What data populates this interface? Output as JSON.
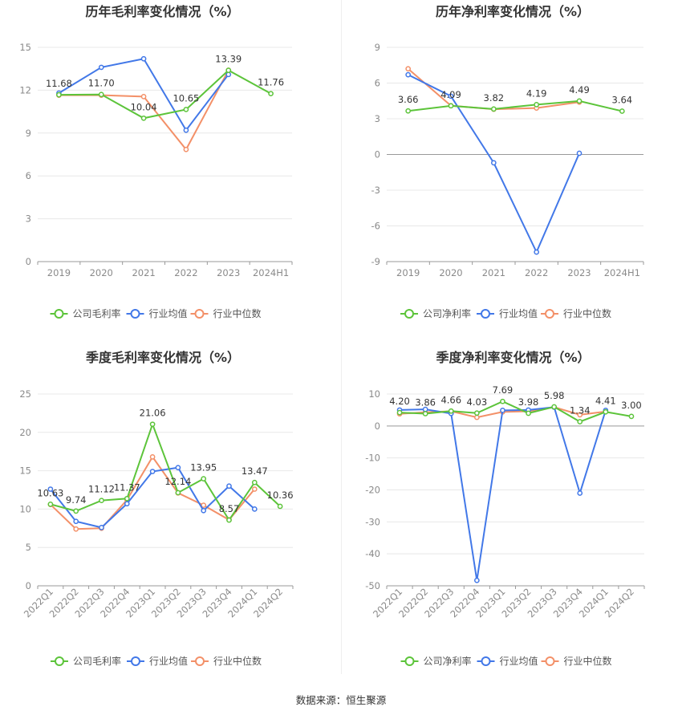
{
  "colors": {
    "company": "#5cc43a",
    "industry_avg": "#4278e8",
    "industry_median": "#f39068",
    "grid": "#e8e8e8",
    "axis": "#999999"
  },
  "source": "数据来源：恒生聚源",
  "chart_data": [
    {
      "type": "line",
      "title": "历年毛利率变化情况（%）",
      "categories": [
        "2019",
        "2020",
        "2021",
        "2022",
        "2023",
        "2024H1"
      ],
      "ylim": [
        0,
        15
      ],
      "yticks": [
        0,
        3,
        6,
        9,
        12,
        15
      ],
      "ytick_labels": [
        "0",
        "3",
        "6",
        "9",
        "12",
        "15"
      ],
      "grid": true,
      "legend_position": "bottom",
      "series": [
        {
          "name": "公司毛利率",
          "values": [
            11.68,
            11.7,
            10.04,
            10.65,
            13.39,
            11.76
          ],
          "labels": [
            "11.68",
            "11.70",
            "10.04",
            "10.65",
            "13.39",
            "11.76"
          ]
        },
        {
          "name": "行业均值",
          "values": [
            11.8,
            13.6,
            14.2,
            9.2,
            13.1,
            null
          ]
        },
        {
          "name": "行业中位数",
          "values": [
            11.65,
            11.65,
            11.55,
            7.85,
            13.4,
            null
          ]
        }
      ]
    },
    {
      "type": "line",
      "title": "历年净利率变化情况（%）",
      "categories": [
        "2019",
        "2020",
        "2021",
        "2022",
        "2023",
        "2024H1"
      ],
      "ylim": [
        -9,
        9
      ],
      "yticks": [
        -9,
        -6,
        -3,
        0,
        3,
        6,
        9
      ],
      "ytick_labels": [
        "-9",
        "-6",
        "-3",
        "0",
        "3",
        "6",
        "9"
      ],
      "grid": true,
      "legend_position": "bottom",
      "series": [
        {
          "name": "公司净利率",
          "values": [
            3.66,
            4.09,
            3.82,
            4.19,
            4.49,
            3.64
          ],
          "labels": [
            "3.66",
            "4.09",
            "3.82",
            "4.19",
            "4.49",
            "3.64"
          ]
        },
        {
          "name": "行业均值",
          "values": [
            6.7,
            4.9,
            -0.7,
            -8.2,
            0.1,
            null
          ]
        },
        {
          "name": "行业中位数",
          "values": [
            7.2,
            4.1,
            3.8,
            3.9,
            4.4,
            null
          ]
        }
      ]
    },
    {
      "type": "line",
      "title": "季度毛利率变化情况（%）",
      "categories": [
        "2022Q1",
        "2022Q2",
        "2022Q3",
        "2022Q4",
        "2023Q1",
        "2023Q2",
        "2023Q3",
        "2023Q4",
        "2024Q1",
        "2024Q2"
      ],
      "ylim": [
        0,
        25
      ],
      "yticks": [
        0,
        5,
        10,
        15,
        20,
        25
      ],
      "ytick_labels": [
        "0",
        "5",
        "10",
        "15",
        "20",
        "25"
      ],
      "grid": true,
      "legend_position": "bottom",
      "series": [
        {
          "name": "公司毛利率",
          "values": [
            10.63,
            9.74,
            11.12,
            11.37,
            21.06,
            12.14,
            13.95,
            8.57,
            13.47,
            10.36
          ],
          "labels": [
            "10.63",
            "9.74",
            "11.12",
            "11.37",
            "21.06",
            "12.14",
            "13.95",
            "8.57",
            "13.47",
            "10.36"
          ]
        },
        {
          "name": "行业均值",
          "values": [
            12.6,
            8.4,
            7.6,
            10.7,
            14.9,
            15.4,
            9.8,
            13.0,
            10.0,
            null
          ]
        },
        {
          "name": "行业中位数",
          "values": [
            10.6,
            7.4,
            7.5,
            11.2,
            16.8,
            12.1,
            10.5,
            8.6,
            12.6,
            null
          ]
        }
      ]
    },
    {
      "type": "line",
      "title": "季度净利率变化情况（%）",
      "categories": [
        "2022Q1",
        "2022Q2",
        "2022Q3",
        "2022Q4",
        "2023Q1",
        "2023Q2",
        "2023Q3",
        "2023Q4",
        "2024Q1",
        "2024Q2"
      ],
      "ylim": [
        -50,
        10
      ],
      "yticks": [
        -50,
        -40,
        -30,
        -20,
        -10,
        0,
        10
      ],
      "ytick_labels": [
        "-50",
        "-40",
        "-30",
        "-20",
        "-10",
        "0",
        "10"
      ],
      "grid": true,
      "legend_position": "bottom",
      "series": [
        {
          "name": "公司净利率",
          "values": [
            4.2,
            3.86,
            4.66,
            4.03,
            7.69,
            3.98,
            5.98,
            1.34,
            4.41,
            3.0
          ],
          "labels": [
            "4.20",
            "3.86",
            "4.66",
            "4.03",
            "7.69",
            "3.98",
            "5.98",
            "1.34",
            "4.41",
            "3.00"
          ]
        },
        {
          "name": "行业均值",
          "values": [
            5.0,
            5.2,
            3.9,
            -48.3,
            4.9,
            5.0,
            5.9,
            -21.0,
            4.9,
            null
          ]
        },
        {
          "name": "行业中位数",
          "values": [
            3.8,
            4.3,
            4.6,
            2.7,
            4.4,
            4.6,
            5.9,
            3.5,
            4.5,
            null
          ]
        }
      ]
    }
  ]
}
